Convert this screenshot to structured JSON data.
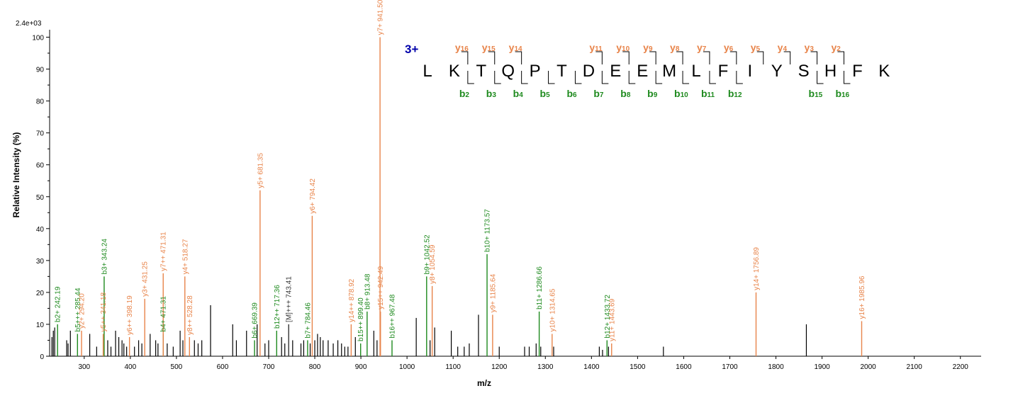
{
  "colors": {
    "y_ion": "#e8844a",
    "b_ion": "#1e8a1e",
    "other": "#333333",
    "unannotated": "#000000",
    "charge": "#0000aa"
  },
  "chart_data": {
    "type": "bar",
    "multiplier_label": "2.4e+03",
    "xlabel": "m/z",
    "ylabel": "Relative  Intensity (%)",
    "xlim": [
      225,
      2245
    ],
    "ylim": [
      0,
      101
    ],
    "x_ticks": [
      300,
      400,
      500,
      600,
      700,
      800,
      900,
      1000,
      1100,
      1200,
      1300,
      1400,
      1500,
      1600,
      1700,
      1800,
      1900,
      2000,
      2100,
      2200
    ],
    "y_ticks": [
      0,
      10,
      20,
      30,
      40,
      50,
      60,
      70,
      80,
      90,
      100
    ],
    "annotated_peaks": [
      {
        "mz": 242.19,
        "intensity": 10,
        "ion": "b",
        "label": "b2+ 242.19"
      },
      {
        "mz": 285.44,
        "intensity": 7,
        "ion": "b",
        "label": "b5+++ 285.44"
      },
      {
        "mz": 294.2,
        "intensity": 8,
        "ion": "y",
        "label": "y2+ 294.20"
      },
      {
        "mz": 343.24,
        "intensity": 25,
        "ion": "b",
        "label": "b3+ 343.24"
      },
      {
        "mz": 341.18,
        "intensity": 7,
        "ion": "y",
        "label": "y5++ 341.18"
      },
      {
        "mz": 398.19,
        "intensity": 6,
        "ion": "y",
        "label": "y6++ 398.19"
      },
      {
        "mz": 431.25,
        "intensity": 18,
        "ion": "y",
        "label": "y3+ 431.25"
      },
      {
        "mz": 471.31,
        "intensity": 7,
        "ion": "b",
        "label": "b4+ 471.31"
      },
      {
        "mz": 471.31,
        "intensity": 26,
        "ion": "y",
        "label": "y7++ 471.31"
      },
      {
        "mz": 518.27,
        "intensity": 25,
        "ion": "y",
        "label": "y4+ 518.27"
      },
      {
        "mz": 528.28,
        "intensity": 6,
        "ion": "y",
        "label": "y8++ 528.28"
      },
      {
        "mz": 669.39,
        "intensity": 5,
        "ion": "b",
        "label": "b6+ 669.39"
      },
      {
        "mz": 681.35,
        "intensity": 52,
        "ion": "y",
        "label": "y5+ 681.35"
      },
      {
        "mz": 717.36,
        "intensity": 8,
        "ion": "b",
        "label": "b12++ 717.36"
      },
      {
        "mz": 743.41,
        "intensity": 10,
        "ion": "other",
        "label": "[M]+++ 743.41"
      },
      {
        "mz": 784.46,
        "intensity": 5,
        "ion": "b",
        "label": "b7+ 784.46"
      },
      {
        "mz": 794.42,
        "intensity": 44,
        "ion": "y",
        "label": "y6+ 794.42"
      },
      {
        "mz": 878.92,
        "intensity": 10,
        "ion": "y",
        "label": "y14++ 878.92"
      },
      {
        "mz": 899.4,
        "intensity": 4,
        "ion": "b",
        "label": "b15++ 899.40"
      },
      {
        "mz": 913.48,
        "intensity": 14,
        "ion": "b",
        "label": "b8+ 913.48"
      },
      {
        "mz": 941.5,
        "intensity": 100,
        "ion": "y",
        "label": "y7+ 941.50"
      },
      {
        "mz": 942.49,
        "intensity": 14,
        "ion": "y",
        "label": "y15++ 942.49"
      },
      {
        "mz": 967.48,
        "intensity": 5,
        "ion": "b",
        "label": "b16++ 967.48"
      },
      {
        "mz": 1042.52,
        "intensity": 25,
        "ion": "b",
        "label": "b9+ 1042.52"
      },
      {
        "mz": 1054.59,
        "intensity": 22,
        "ion": "y",
        "label": "y8+ 1054.59"
      },
      {
        "mz": 1173.57,
        "intensity": 32,
        "ion": "b",
        "label": "b10+ 1173.57"
      },
      {
        "mz": 1185.64,
        "intensity": 13,
        "ion": "y",
        "label": "y9+ 1185.64"
      },
      {
        "mz": 1286.66,
        "intensity": 14,
        "ion": "b",
        "label": "b11+ 1286.66"
      },
      {
        "mz": 1314.65,
        "intensity": 7,
        "ion": "y",
        "label": "y10+ 1314.65"
      },
      {
        "mz": 1433.72,
        "intensity": 5,
        "ion": "b",
        "label": "b12+ 1433.72"
      },
      {
        "mz": 1443.69,
        "intensity": 4,
        "ion": "y",
        "label": "y11+ 1443.69"
      },
      {
        "mz": 1756.89,
        "intensity": 20,
        "ion": "y",
        "label": "y14+ 1756.89"
      },
      {
        "mz": 1985.96,
        "intensity": 11,
        "ion": "y",
        "label": "y16+ 1985.96"
      }
    ],
    "unannotated_peaks": [
      {
        "mz": 230,
        "intensity": 6
      },
      {
        "mz": 233,
        "intensity": 8
      },
      {
        "mz": 236,
        "intensity": 9
      },
      {
        "mz": 262,
        "intensity": 5
      },
      {
        "mz": 265,
        "intensity": 4
      },
      {
        "mz": 270,
        "intensity": 8
      },
      {
        "mz": 312,
        "intensity": 7
      },
      {
        "mz": 327,
        "intensity": 3
      },
      {
        "mz": 351,
        "intensity": 5
      },
      {
        "mz": 358,
        "intensity": 3
      },
      {
        "mz": 368,
        "intensity": 8
      },
      {
        "mz": 375,
        "intensity": 6
      },
      {
        "mz": 382,
        "intensity": 5
      },
      {
        "mz": 386,
        "intensity": 4
      },
      {
        "mz": 392,
        "intensity": 3
      },
      {
        "mz": 409,
        "intensity": 3
      },
      {
        "mz": 418,
        "intensity": 5
      },
      {
        "mz": 425,
        "intensity": 4
      },
      {
        "mz": 443,
        "intensity": 7
      },
      {
        "mz": 455,
        "intensity": 5
      },
      {
        "mz": 460,
        "intensity": 4
      },
      {
        "mz": 480,
        "intensity": 4
      },
      {
        "mz": 493,
        "intensity": 3
      },
      {
        "mz": 508,
        "intensity": 8
      },
      {
        "mz": 514,
        "intensity": 5
      },
      {
        "mz": 539,
        "intensity": 5
      },
      {
        "mz": 547,
        "intensity": 4
      },
      {
        "mz": 555,
        "intensity": 5
      },
      {
        "mz": 574,
        "intensity": 16
      },
      {
        "mz": 622,
        "intensity": 10
      },
      {
        "mz": 630,
        "intensity": 5
      },
      {
        "mz": 652,
        "intensity": 8
      },
      {
        "mz": 675,
        "intensity": 10
      },
      {
        "mz": 692,
        "intensity": 4
      },
      {
        "mz": 700,
        "intensity": 5
      },
      {
        "mz": 728,
        "intensity": 6
      },
      {
        "mz": 735,
        "intensity": 4
      },
      {
        "mz": 752,
        "intensity": 5
      },
      {
        "mz": 770,
        "intensity": 4
      },
      {
        "mz": 776,
        "intensity": 5
      },
      {
        "mz": 790,
        "intensity": 4
      },
      {
        "mz": 800,
        "intensity": 5
      },
      {
        "mz": 806,
        "intensity": 7
      },
      {
        "mz": 812,
        "intensity": 6
      },
      {
        "mz": 818,
        "intensity": 5
      },
      {
        "mz": 829,
        "intensity": 5
      },
      {
        "mz": 840,
        "intensity": 4
      },
      {
        "mz": 850,
        "intensity": 5
      },
      {
        "mz": 858,
        "intensity": 4
      },
      {
        "mz": 865,
        "intensity": 3
      },
      {
        "mz": 872,
        "intensity": 3
      },
      {
        "mz": 888,
        "intensity": 6
      },
      {
        "mz": 928,
        "intensity": 8
      },
      {
        "mz": 935,
        "intensity": 5
      },
      {
        "mz": 1020,
        "intensity": 12
      },
      {
        "mz": 1050,
        "intensity": 5
      },
      {
        "mz": 1060,
        "intensity": 9
      },
      {
        "mz": 1096,
        "intensity": 8
      },
      {
        "mz": 1110,
        "intensity": 3
      },
      {
        "mz": 1124,
        "intensity": 3
      },
      {
        "mz": 1135,
        "intensity": 4
      },
      {
        "mz": 1155,
        "intensity": 13
      },
      {
        "mz": 1200,
        "intensity": 3
      },
      {
        "mz": 1255,
        "intensity": 3
      },
      {
        "mz": 1265,
        "intensity": 3
      },
      {
        "mz": 1280,
        "intensity": 4
      },
      {
        "mz": 1290,
        "intensity": 3
      },
      {
        "mz": 1318,
        "intensity": 3
      },
      {
        "mz": 1417,
        "intensity": 3
      },
      {
        "mz": 1424,
        "intensity": 2
      },
      {
        "mz": 1437,
        "intensity": 3
      },
      {
        "mz": 1556,
        "intensity": 3
      },
      {
        "mz": 1866,
        "intensity": 10
      }
    ]
  },
  "peptide": {
    "charge": "3+",
    "sequence": [
      "L",
      "K",
      "T",
      "Q",
      "P",
      "T",
      "D",
      "E",
      "E",
      "M",
      "L",
      "F",
      "I",
      "Y",
      "S",
      "H",
      "F",
      "K"
    ],
    "y_ions": [
      {
        "after": 2,
        "n": "16"
      },
      {
        "after": 3,
        "n": "15"
      },
      {
        "after": 4,
        "n": "14"
      },
      {
        "after": 7,
        "n": "11"
      },
      {
        "after": 8,
        "n": "10"
      },
      {
        "after": 9,
        "n": "9"
      },
      {
        "after": 10,
        "n": "8"
      },
      {
        "after": 11,
        "n": "7"
      },
      {
        "after": 12,
        "n": "6"
      },
      {
        "after": 13,
        "n": "5"
      },
      {
        "after": 14,
        "n": "4"
      },
      {
        "after": 15,
        "n": "3"
      },
      {
        "after": 16,
        "n": "2"
      }
    ],
    "b_ions": [
      {
        "after": 2,
        "n": "2"
      },
      {
        "after": 3,
        "n": "3"
      },
      {
        "after": 4,
        "n": "4"
      },
      {
        "after": 5,
        "n": "5"
      },
      {
        "after": 6,
        "n": "6"
      },
      {
        "after": 7,
        "n": "7"
      },
      {
        "after": 8,
        "n": "8"
      },
      {
        "after": 9,
        "n": "9"
      },
      {
        "after": 10,
        "n": "10"
      },
      {
        "after": 11,
        "n": "11"
      },
      {
        "after": 12,
        "n": "12"
      },
      {
        "after": 15,
        "n": "15"
      },
      {
        "after": 16,
        "n": "16"
      }
    ],
    "y_letter": "y",
    "b_letter": "b"
  }
}
